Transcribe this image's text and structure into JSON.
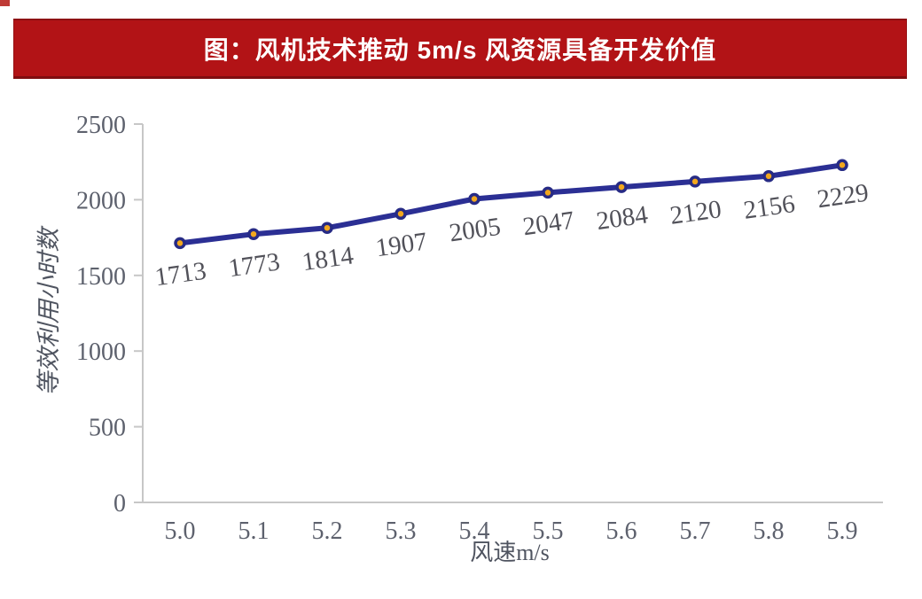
{
  "banner": {
    "text": "图：风机技术推动 5m/s 风资源具备开发价值",
    "bg_color": "#b21316",
    "border_color": "#7f0d10",
    "text_color": "#ffffff"
  },
  "chart_data": {
    "type": "line",
    "title": "图：风机技术推动 5m/s 风资源具备开发价值",
    "categories": [
      "5.0",
      "5.1",
      "5.2",
      "5.3",
      "5.4",
      "5.5",
      "5.6",
      "5.7",
      "5.8",
      "5.9"
    ],
    "values": [
      1713,
      1773,
      1814,
      1907,
      2005,
      2047,
      2084,
      2120,
      2156,
      2229
    ],
    "xlabel": "风速m/s",
    "ylabel": "等效利用小时数",
    "ylim": [
      0,
      2500
    ],
    "yticks": [
      0,
      500,
      1000,
      1500,
      2000,
      2500
    ],
    "grid": false,
    "legend_position": "none",
    "line_color": "#2b2f94",
    "marker_fill": "#f2a71d",
    "marker_stroke": "#272b85",
    "axis_color": "#c7c7c7",
    "tick_label_color": "#5d616d",
    "point_label_color": "#515159"
  }
}
